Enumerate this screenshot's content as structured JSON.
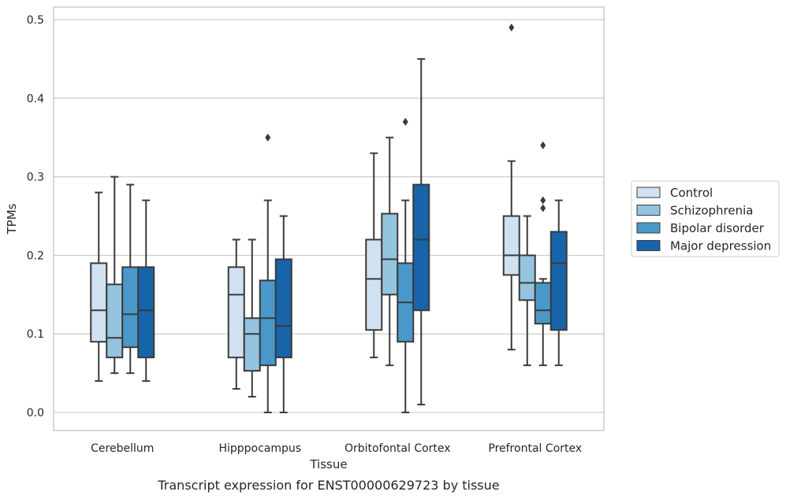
{
  "chart_data": {
    "type": "box",
    "caption": "Transcript expression for ENST00000629723 by tissue",
    "xlabel": "Tissue",
    "ylabel": "TPMs",
    "ylim": [
      -0.023,
      0.516
    ],
    "yticks": [
      0.0,
      0.1,
      0.2,
      0.3,
      0.4,
      0.5
    ],
    "ytick_labels": [
      "0.0",
      "0.1",
      "0.2",
      "0.3",
      "0.4",
      "0.5"
    ],
    "grid": "horizontal",
    "legend_position": "right",
    "categories": [
      "Cerebellum",
      "Hipppocampus",
      "Orbitofontal Cortex",
      "Prefrontal Cortex"
    ],
    "series": [
      {
        "name": "Control",
        "color": "#d0e1f2",
        "boxes": [
          {
            "whislo": 0.04,
            "q1": 0.09,
            "med": 0.13,
            "q3": 0.19,
            "whishi": 0.28,
            "fliers": []
          },
          {
            "whislo": 0.03,
            "q1": 0.07,
            "med": 0.15,
            "q3": 0.185,
            "whishi": 0.22,
            "fliers": []
          },
          {
            "whislo": 0.07,
            "q1": 0.105,
            "med": 0.17,
            "q3": 0.22,
            "whishi": 0.33,
            "fliers": []
          },
          {
            "whislo": 0.08,
            "q1": 0.175,
            "med": 0.2,
            "q3": 0.25,
            "whishi": 0.32,
            "fliers": [
              0.49
            ]
          }
        ]
      },
      {
        "name": "Schizophrenia",
        "color": "#94c4df",
        "boxes": [
          {
            "whislo": 0.05,
            "q1": 0.07,
            "med": 0.095,
            "q3": 0.163,
            "whishi": 0.3,
            "fliers": []
          },
          {
            "whislo": 0.02,
            "q1": 0.053,
            "med": 0.1,
            "q3": 0.12,
            "whishi": 0.22,
            "fliers": []
          },
          {
            "whislo": 0.06,
            "q1": 0.15,
            "med": 0.195,
            "q3": 0.253,
            "whishi": 0.35,
            "fliers": []
          },
          {
            "whislo": 0.06,
            "q1": 0.143,
            "med": 0.165,
            "q3": 0.2,
            "whishi": 0.25,
            "fliers": []
          }
        ]
      },
      {
        "name": "Bipolar disorder",
        "color": "#4a98c9",
        "boxes": [
          {
            "whislo": 0.05,
            "q1": 0.083,
            "med": 0.125,
            "q3": 0.185,
            "whishi": 0.29,
            "fliers": []
          },
          {
            "whislo": 0.0,
            "q1": 0.06,
            "med": 0.12,
            "q3": 0.168,
            "whishi": 0.27,
            "fliers": [
              0.35
            ]
          },
          {
            "whislo": 0.0,
            "q1": 0.09,
            "med": 0.14,
            "q3": 0.19,
            "whishi": 0.27,
            "fliers": [
              0.37
            ]
          },
          {
            "whislo": 0.06,
            "q1": 0.113,
            "med": 0.13,
            "q3": 0.165,
            "whishi": 0.17,
            "fliers": [
              0.26,
              0.27,
              0.34
            ]
          }
        ]
      },
      {
        "name": "Major depression",
        "color": "#1764ab",
        "boxes": [
          {
            "whislo": 0.04,
            "q1": 0.07,
            "med": 0.13,
            "q3": 0.185,
            "whishi": 0.27,
            "fliers": []
          },
          {
            "whislo": 0.0,
            "q1": 0.07,
            "med": 0.11,
            "q3": 0.195,
            "whishi": 0.25,
            "fliers": []
          },
          {
            "whislo": 0.01,
            "q1": 0.13,
            "med": 0.22,
            "q3": 0.29,
            "whishi": 0.45,
            "fliers": []
          },
          {
            "whislo": 0.06,
            "q1": 0.105,
            "med": 0.19,
            "q3": 0.23,
            "whishi": 0.27,
            "fliers": []
          }
        ]
      }
    ]
  }
}
